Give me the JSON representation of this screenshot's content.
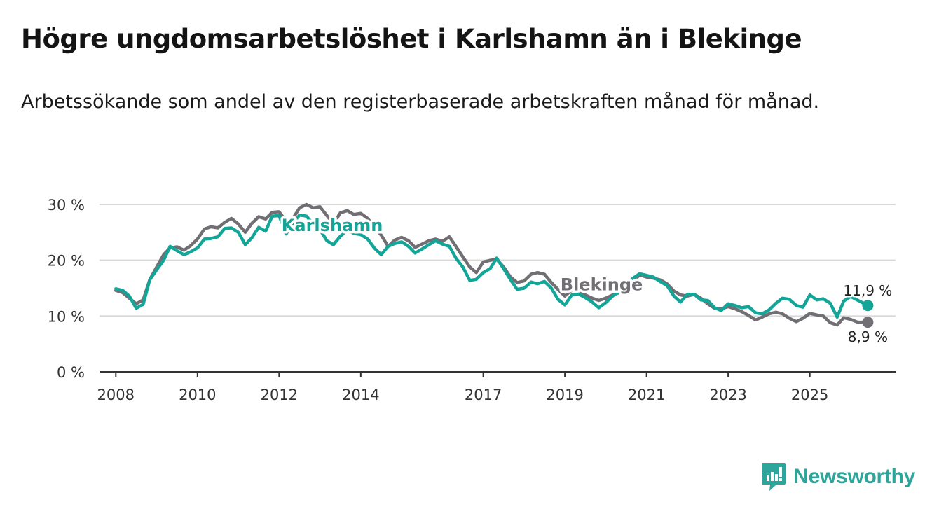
{
  "title": "Högre ungdomsarbetslöshet i Karlshamn än i Blekinge",
  "subtitle": "Arbetssökande som andel av den registerbaserade arbetskraften månad för månad.",
  "brand": {
    "name": "Newsworthy",
    "color": "#2ea59a"
  },
  "colors": {
    "karlshamn": "#13a698",
    "blekinge": "#716f74",
    "grid": "#d8d8d8",
    "axis": "#333333"
  },
  "chart_data": {
    "type": "line",
    "title": "Högre ungdomsarbetslöshet i Karlshamn än i Blekinge",
    "xlabel": "",
    "ylabel": "",
    "xlim": [
      2007.6,
      2027.1
    ],
    "ylim": [
      0,
      30
    ],
    "y_ticks": [
      0,
      10,
      20,
      30
    ],
    "y_tick_labels": [
      "0 %",
      "10 %",
      "20 %",
      "30 %"
    ],
    "x_ticks": [
      2008,
      2010,
      2012,
      2014,
      2017,
      2019,
      2021,
      2023,
      2025
    ],
    "x_tick_labels": [
      "2008",
      "2010",
      "2012",
      "2014",
      "2017",
      "2019",
      "2021",
      "2023",
      "2025"
    ],
    "grid": true,
    "series": [
      {
        "name": "Blekinge",
        "label": "Blekinge",
        "color": "#716f74",
        "end_label": "8,9 %",
        "points": [
          [
            2008.0,
            14.6
          ],
          [
            2008.17,
            14.2
          ],
          [
            2008.33,
            13.2
          ],
          [
            2008.5,
            12.2
          ],
          [
            2008.67,
            12.9
          ],
          [
            2008.83,
            16.5
          ],
          [
            2009.0,
            18.8
          ],
          [
            2009.17,
            21.0
          ],
          [
            2009.33,
            22.2
          ],
          [
            2009.5,
            22.4
          ],
          [
            2009.67,
            21.8
          ],
          [
            2009.83,
            22.6
          ],
          [
            2010.0,
            23.8
          ],
          [
            2010.17,
            25.6
          ],
          [
            2010.33,
            26.0
          ],
          [
            2010.5,
            25.8
          ],
          [
            2010.67,
            26.8
          ],
          [
            2010.83,
            27.5
          ],
          [
            2011.0,
            26.5
          ],
          [
            2011.17,
            25.0
          ],
          [
            2011.33,
            26.6
          ],
          [
            2011.5,
            27.8
          ],
          [
            2011.67,
            27.4
          ],
          [
            2011.83,
            28.6
          ],
          [
            2012.0,
            28.7
          ],
          [
            2012.17,
            27.0
          ],
          [
            2012.33,
            27.4
          ],
          [
            2012.5,
            29.4
          ],
          [
            2012.67,
            30.0
          ],
          [
            2012.83,
            29.4
          ],
          [
            2013.0,
            29.6
          ],
          [
            2013.17,
            28.0
          ],
          [
            2013.33,
            26.5
          ],
          [
            2013.5,
            28.5
          ],
          [
            2013.67,
            28.9
          ],
          [
            2013.83,
            28.2
          ],
          [
            2014.0,
            28.4
          ],
          [
            2014.17,
            27.5
          ],
          [
            2014.33,
            26.0
          ],
          [
            2014.5,
            24.5
          ],
          [
            2014.67,
            22.5
          ],
          [
            2014.83,
            23.6
          ],
          [
            2015.0,
            24.1
          ],
          [
            2015.17,
            23.5
          ],
          [
            2015.33,
            22.3
          ],
          [
            2015.5,
            22.9
          ],
          [
            2015.67,
            23.5
          ],
          [
            2015.83,
            23.8
          ],
          [
            2016.0,
            23.4
          ],
          [
            2016.17,
            24.2
          ],
          [
            2016.33,
            22.5
          ],
          [
            2016.5,
            20.6
          ],
          [
            2016.67,
            18.8
          ],
          [
            2016.83,
            17.8
          ],
          [
            2017.0,
            19.7
          ],
          [
            2017.17,
            20.0
          ],
          [
            2017.33,
            20.2
          ],
          [
            2017.5,
            18.8
          ],
          [
            2017.67,
            17.0
          ],
          [
            2017.83,
            16.0
          ],
          [
            2018.0,
            16.3
          ],
          [
            2018.17,
            17.5
          ],
          [
            2018.33,
            17.8
          ],
          [
            2018.5,
            17.5
          ],
          [
            2018.67,
            16.0
          ],
          [
            2018.83,
            14.8
          ],
          [
            2019.0,
            13.6
          ],
          [
            2019.17,
            14.7
          ],
          [
            2019.33,
            14.8
          ],
          [
            2019.5,
            13.8
          ],
          [
            2019.67,
            13.2
          ],
          [
            2019.83,
            12.8
          ],
          [
            2020.0,
            13.2
          ],
          [
            2020.17,
            13.8
          ],
          [
            2020.33,
            14.2
          ],
          [
            2020.5,
            15.0
          ],
          [
            2020.67,
            16.2
          ],
          [
            2020.83,
            17.4
          ],
          [
            2021.0,
            17.0
          ],
          [
            2021.17,
            16.8
          ],
          [
            2021.33,
            16.5
          ],
          [
            2021.5,
            15.8
          ],
          [
            2021.67,
            14.5
          ],
          [
            2021.83,
            13.8
          ],
          [
            2022.0,
            13.6
          ],
          [
            2022.17,
            13.9
          ],
          [
            2022.33,
            13.2
          ],
          [
            2022.5,
            12.2
          ],
          [
            2022.67,
            11.4
          ],
          [
            2022.83,
            11.3
          ],
          [
            2023.0,
            11.7
          ],
          [
            2023.17,
            11.3
          ],
          [
            2023.33,
            10.8
          ],
          [
            2023.5,
            10.1
          ],
          [
            2023.67,
            9.3
          ],
          [
            2023.83,
            9.8
          ],
          [
            2024.0,
            10.4
          ],
          [
            2024.17,
            10.7
          ],
          [
            2024.33,
            10.4
          ],
          [
            2024.5,
            9.6
          ],
          [
            2024.67,
            9.0
          ],
          [
            2024.83,
            9.6
          ],
          [
            2025.0,
            10.5
          ],
          [
            2025.17,
            10.2
          ],
          [
            2025.33,
            10.0
          ],
          [
            2025.5,
            8.8
          ],
          [
            2025.67,
            8.4
          ],
          [
            2025.83,
            9.7
          ],
          [
            2026.0,
            9.4
          ],
          [
            2026.17,
            8.9
          ],
          [
            2026.42,
            8.9
          ]
        ]
      },
      {
        "name": "Karlshamn",
        "label": "Karlshamn",
        "color": "#13a698",
        "end_label": "11,9 %",
        "points": [
          [
            2008.0,
            14.9
          ],
          [
            2008.17,
            14.6
          ],
          [
            2008.33,
            13.6
          ],
          [
            2008.5,
            11.4
          ],
          [
            2008.67,
            12.1
          ],
          [
            2008.83,
            16.5
          ],
          [
            2009.0,
            18.3
          ],
          [
            2009.17,
            20.0
          ],
          [
            2009.33,
            22.5
          ],
          [
            2009.5,
            21.7
          ],
          [
            2009.67,
            21.0
          ],
          [
            2009.83,
            21.5
          ],
          [
            2010.0,
            22.2
          ],
          [
            2010.17,
            23.8
          ],
          [
            2010.33,
            23.9
          ],
          [
            2010.5,
            24.2
          ],
          [
            2010.67,
            25.7
          ],
          [
            2010.83,
            25.8
          ],
          [
            2011.0,
            25.0
          ],
          [
            2011.17,
            22.8
          ],
          [
            2011.33,
            24.0
          ],
          [
            2011.5,
            25.9
          ],
          [
            2011.67,
            25.2
          ],
          [
            2011.83,
            27.9
          ],
          [
            2012.0,
            28.0
          ],
          [
            2012.17,
            24.7
          ],
          [
            2012.33,
            26.6
          ],
          [
            2012.5,
            28.1
          ],
          [
            2012.67,
            27.9
          ],
          [
            2012.83,
            26.5
          ],
          [
            2013.0,
            25.5
          ],
          [
            2013.17,
            23.5
          ],
          [
            2013.33,
            22.8
          ],
          [
            2013.5,
            24.3
          ],
          [
            2013.67,
            25.4
          ],
          [
            2013.83,
            24.8
          ],
          [
            2014.0,
            24.6
          ],
          [
            2014.17,
            23.8
          ],
          [
            2014.33,
            22.2
          ],
          [
            2014.5,
            21.0
          ],
          [
            2014.67,
            22.5
          ],
          [
            2014.83,
            23.0
          ],
          [
            2015.0,
            23.3
          ],
          [
            2015.17,
            22.5
          ],
          [
            2015.33,
            21.3
          ],
          [
            2015.5,
            22.0
          ],
          [
            2015.67,
            22.8
          ],
          [
            2015.83,
            23.5
          ],
          [
            2016.0,
            22.9
          ],
          [
            2016.17,
            22.5
          ],
          [
            2016.33,
            20.4
          ],
          [
            2016.5,
            18.8
          ],
          [
            2016.67,
            16.4
          ],
          [
            2016.83,
            16.6
          ],
          [
            2017.0,
            17.8
          ],
          [
            2017.17,
            18.5
          ],
          [
            2017.33,
            20.4
          ],
          [
            2017.5,
            18.5
          ],
          [
            2017.67,
            16.5
          ],
          [
            2017.83,
            14.8
          ],
          [
            2018.0,
            15.0
          ],
          [
            2018.17,
            16.1
          ],
          [
            2018.33,
            15.8
          ],
          [
            2018.5,
            16.2
          ],
          [
            2018.67,
            15.0
          ],
          [
            2018.83,
            13.0
          ],
          [
            2019.0,
            12.0
          ],
          [
            2019.17,
            13.8
          ],
          [
            2019.33,
            14.0
          ],
          [
            2019.5,
            13.3
          ],
          [
            2019.67,
            12.5
          ],
          [
            2019.83,
            11.5
          ],
          [
            2020.0,
            12.4
          ],
          [
            2020.17,
            13.6
          ],
          [
            2020.33,
            14.4
          ],
          [
            2020.5,
            15.6
          ],
          [
            2020.67,
            16.8
          ],
          [
            2020.83,
            17.6
          ],
          [
            2021.0,
            17.3
          ],
          [
            2021.17,
            17.0
          ],
          [
            2021.33,
            16.2
          ],
          [
            2021.5,
            15.5
          ],
          [
            2021.67,
            13.6
          ],
          [
            2021.83,
            12.5
          ],
          [
            2022.0,
            13.9
          ],
          [
            2022.17,
            13.9
          ],
          [
            2022.33,
            12.9
          ],
          [
            2022.5,
            12.8
          ],
          [
            2022.67,
            11.5
          ],
          [
            2022.83,
            11.0
          ],
          [
            2023.0,
            12.2
          ],
          [
            2023.17,
            11.9
          ],
          [
            2023.33,
            11.5
          ],
          [
            2023.5,
            11.7
          ],
          [
            2023.67,
            10.6
          ],
          [
            2023.83,
            10.4
          ],
          [
            2024.0,
            11.1
          ],
          [
            2024.17,
            12.3
          ],
          [
            2024.33,
            13.2
          ],
          [
            2024.5,
            13.0
          ],
          [
            2024.67,
            11.9
          ],
          [
            2024.83,
            11.6
          ],
          [
            2025.0,
            13.8
          ],
          [
            2025.17,
            12.9
          ],
          [
            2025.33,
            13.1
          ],
          [
            2025.5,
            12.3
          ],
          [
            2025.67,
            9.8
          ],
          [
            2025.83,
            12.7
          ],
          [
            2026.0,
            13.5
          ],
          [
            2026.42,
            11.9
          ]
        ]
      }
    ]
  }
}
